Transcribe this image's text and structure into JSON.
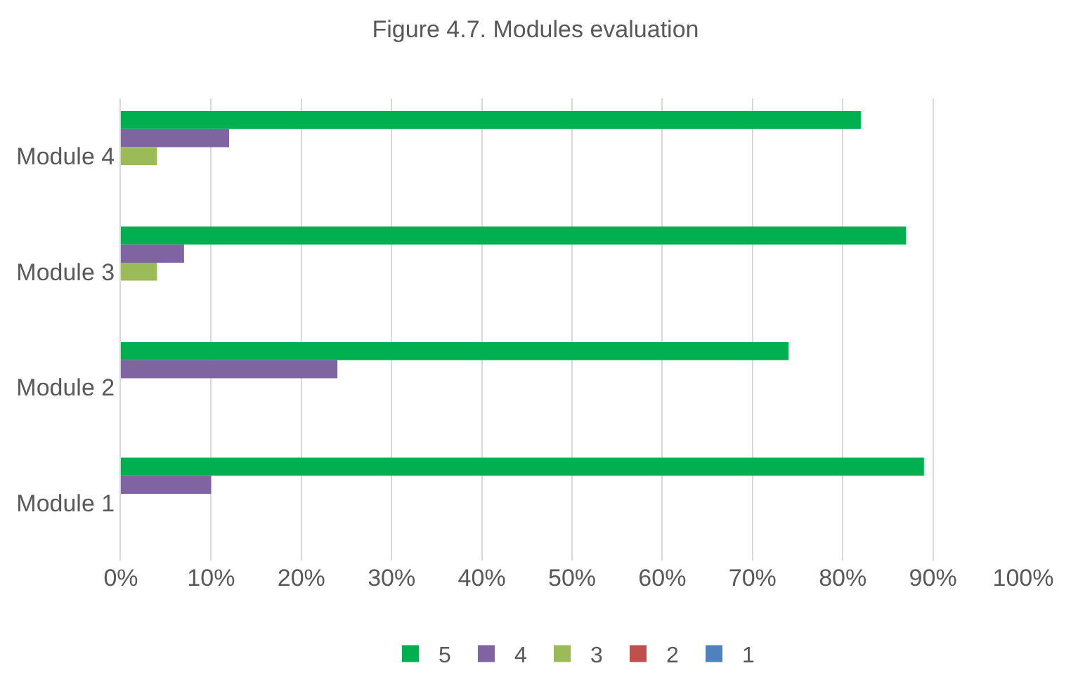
{
  "chart_data": {
    "type": "bar",
    "orientation": "horizontal",
    "title": "Figure 4.7. Modules evaluation",
    "categories": [
      "Module 4",
      "Module 3",
      "Module 2",
      "Module 1"
    ],
    "series": [
      {
        "name": "5",
        "color": "#00b050",
        "values": [
          82,
          87,
          74,
          89
        ]
      },
      {
        "name": "4",
        "color": "#8064a2",
        "values": [
          12,
          7,
          24,
          10
        ]
      },
      {
        "name": "3",
        "color": "#9bbb59",
        "values": [
          4,
          4,
          null,
          null
        ]
      },
      {
        "name": "2",
        "color": "#c0504d",
        "values": [
          null,
          null,
          null,
          null
        ]
      },
      {
        "name": "1",
        "color": "#4f81bd",
        "values": [
          null,
          null,
          null,
          null
        ]
      }
    ],
    "xlim": [
      0,
      100
    ],
    "xticks": [
      {
        "value": 0,
        "label": "0%"
      },
      {
        "value": 10,
        "label": "10%"
      },
      {
        "value": 20,
        "label": "20%"
      },
      {
        "value": 30,
        "label": "30%"
      },
      {
        "value": 40,
        "label": "40%"
      },
      {
        "value": 50,
        "label": "50%"
      },
      {
        "value": 60,
        "label": "60%"
      },
      {
        "value": 70,
        "label": "70%"
      },
      {
        "value": 80,
        "label": "80%"
      },
      {
        "value": 90,
        "label": "90%"
      },
      {
        "value": 100,
        "label": "100%"
      }
    ],
    "grid": "x",
    "legend": "bottom"
  }
}
